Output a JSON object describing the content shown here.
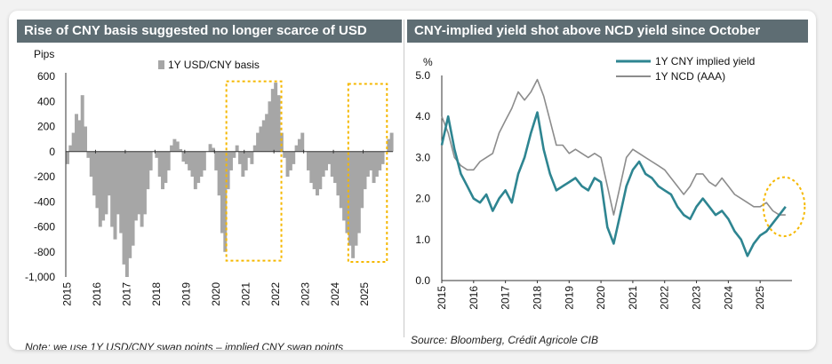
{
  "chart_data": [
    {
      "type": "bar",
      "title": "Rise of CNY basis suggested no longer scarce of USD",
      "ylabel": "Pips",
      "ylim": [
        -1000,
        600
      ],
      "yticks": [
        "600",
        "400",
        "200",
        "0",
        "-200",
        "-400",
        "-600",
        "-800",
        "-1,000"
      ],
      "xlim": [
        2015.0,
        2026.0
      ],
      "xticks": [
        "2015",
        "2016",
        "2017",
        "2018",
        "2019",
        "2020",
        "2021",
        "2022",
        "2023",
        "2024",
        "2025"
      ],
      "legend": "1Y USD/CNY basis",
      "series": [
        {
          "name": "1Y USD/CNY basis",
          "x": [
            2015.0,
            2015.1,
            2015.2,
            2015.3,
            2015.4,
            2015.5,
            2015.6,
            2015.7,
            2015.8,
            2015.9,
            2016.0,
            2016.1,
            2016.2,
            2016.3,
            2016.4,
            2016.5,
            2016.6,
            2016.7,
            2016.8,
            2016.9,
            2017.0,
            2017.1,
            2017.2,
            2017.3,
            2017.4,
            2017.5,
            2017.6,
            2017.7,
            2017.8,
            2017.9,
            2018.0,
            2018.1,
            2018.2,
            2018.3,
            2018.4,
            2018.5,
            2018.6,
            2018.7,
            2018.8,
            2018.9,
            2019.0,
            2019.1,
            2019.2,
            2019.3,
            2019.4,
            2019.5,
            2019.6,
            2019.7,
            2019.8,
            2019.9,
            2020.0,
            2020.1,
            2020.2,
            2020.3,
            2020.4,
            2020.5,
            2020.6,
            2020.7,
            2020.8,
            2020.9,
            2021.0,
            2021.1,
            2021.2,
            2021.3,
            2021.4,
            2021.5,
            2021.6,
            2021.7,
            2021.8,
            2021.9,
            2022.0,
            2022.1,
            2022.2,
            2022.3,
            2022.4,
            2022.5,
            2022.6,
            2022.7,
            2022.8,
            2022.9,
            2023.0,
            2023.1,
            2023.2,
            2023.3,
            2023.4,
            2023.5,
            2023.6,
            2023.7,
            2023.8,
            2023.9,
            2024.0,
            2024.1,
            2024.2,
            2024.3,
            2024.4,
            2024.5,
            2024.6,
            2024.7,
            2024.8,
            2024.9,
            2025.0,
            2025.1,
            2025.2,
            2025.3,
            2025.4,
            2025.5,
            2025.6,
            2025.7,
            2025.8,
            2025.9
          ],
          "values": [
            -100,
            50,
            150,
            300,
            250,
            450,
            200,
            -50,
            -200,
            -350,
            -450,
            -600,
            -550,
            -500,
            -350,
            -600,
            -700,
            -500,
            -650,
            -900,
            -1000,
            -850,
            -750,
            -550,
            -500,
            -600,
            -500,
            -300,
            -150,
            0,
            -50,
            -200,
            -300,
            -250,
            -150,
            50,
            100,
            80,
            20,
            -80,
            -100,
            -150,
            -200,
            -300,
            -250,
            -200,
            -150,
            0,
            60,
            30,
            -150,
            -350,
            -650,
            -800,
            -300,
            -150,
            -50,
            50,
            -100,
            -200,
            -150,
            -50,
            -100,
            50,
            150,
            200,
            250,
            300,
            400,
            500,
            550,
            450,
            150,
            -50,
            -200,
            -150,
            -100,
            50,
            100,
            150,
            0,
            -150,
            -250,
            -300,
            -350,
            -300,
            -200,
            -150,
            -100,
            -200,
            -250,
            -350,
            -450,
            -550,
            -650,
            -750,
            -850,
            -750,
            -650,
            -450,
            -300,
            -200,
            -150,
            -250,
            -200,
            -150,
            -100,
            0,
            100,
            150
          ]
        }
      ],
      "highlights": [
        {
          "x_from": 2020.4,
          "x_to": 2022.25,
          "y_from": -870,
          "y_to": 560
        },
        {
          "x_from": 2024.5,
          "x_to": 2025.8,
          "y_from": -880,
          "y_to": 540
        }
      ],
      "note": "Note: we use 1Y USD/CNY swap points – implied CNY swap points"
    },
    {
      "type": "line",
      "title": "CNY-implied yield shot above NCD yield since October",
      "ylabel": "%",
      "ylim": [
        0.0,
        5.0
      ],
      "yticks": [
        "5.0",
        "4.0",
        "3.0",
        "2.0",
        "1.0",
        "0.0"
      ],
      "xlim": [
        2015.0,
        2026.0
      ],
      "xticks": [
        "2015",
        "2016",
        "2017",
        "2018",
        "2019",
        "2020",
        "2021",
        "2022",
        "2023",
        "2024",
        "2025"
      ],
      "series": [
        {
          "name": "1Y CNY implied yield",
          "color": "#2e8591",
          "x": [
            2015.0,
            2015.2,
            2015.4,
            2015.6,
            2015.8,
            2016.0,
            2016.2,
            2016.4,
            2016.6,
            2016.8,
            2017.0,
            2017.2,
            2017.4,
            2017.6,
            2017.8,
            2018.0,
            2018.2,
            2018.4,
            2018.6,
            2018.8,
            2019.0,
            2019.2,
            2019.4,
            2019.6,
            2019.8,
            2020.0,
            2020.2,
            2020.4,
            2020.6,
            2020.8,
            2021.0,
            2021.2,
            2021.4,
            2021.6,
            2021.8,
            2022.0,
            2022.2,
            2022.4,
            2022.6,
            2022.8,
            2023.0,
            2023.2,
            2023.4,
            2023.6,
            2023.8,
            2024.0,
            2024.2,
            2024.4,
            2024.6,
            2024.8,
            2025.0,
            2025.2,
            2025.4,
            2025.6,
            2025.8
          ],
          "values": [
            3.3,
            4.0,
            3.2,
            2.6,
            2.3,
            2.0,
            1.9,
            2.1,
            1.7,
            2.0,
            2.2,
            1.9,
            2.6,
            3.0,
            3.6,
            4.1,
            3.2,
            2.6,
            2.2,
            2.3,
            2.4,
            2.5,
            2.3,
            2.2,
            2.5,
            2.4,
            1.3,
            0.9,
            1.6,
            2.3,
            2.7,
            2.9,
            2.6,
            2.5,
            2.3,
            2.2,
            2.1,
            1.8,
            1.6,
            1.5,
            1.8,
            2.0,
            1.8,
            1.6,
            1.7,
            1.5,
            1.2,
            1.0,
            0.6,
            0.9,
            1.1,
            1.2,
            1.4,
            1.6,
            1.8
          ]
        },
        {
          "name": "1Y NCD (AAA)",
          "color": "#8c8c8c",
          "x": [
            2015.0,
            2015.2,
            2015.4,
            2015.6,
            2015.8,
            2016.0,
            2016.2,
            2016.4,
            2016.6,
            2016.8,
            2017.0,
            2017.2,
            2017.4,
            2017.6,
            2017.8,
            2018.0,
            2018.2,
            2018.4,
            2018.6,
            2018.8,
            2019.0,
            2019.2,
            2019.4,
            2019.6,
            2019.8,
            2020.0,
            2020.2,
            2020.4,
            2020.6,
            2020.8,
            2021.0,
            2021.2,
            2021.4,
            2021.6,
            2021.8,
            2022.0,
            2022.2,
            2022.4,
            2022.6,
            2022.8,
            2023.0,
            2023.2,
            2023.4,
            2023.6,
            2023.8,
            2024.0,
            2024.2,
            2024.4,
            2024.6,
            2024.8,
            2025.0,
            2025.2,
            2025.4,
            2025.6,
            2025.8
          ],
          "values": [
            4.0,
            3.6,
            3.0,
            2.8,
            2.7,
            2.7,
            2.9,
            3.0,
            3.1,
            3.6,
            3.9,
            4.2,
            4.6,
            4.4,
            4.6,
            4.9,
            4.5,
            3.9,
            3.3,
            3.3,
            3.1,
            3.2,
            3.1,
            3.0,
            3.1,
            3.0,
            2.3,
            1.6,
            2.3,
            3.0,
            3.2,
            3.1,
            3.0,
            2.9,
            2.8,
            2.7,
            2.5,
            2.3,
            2.1,
            2.3,
            2.6,
            2.6,
            2.4,
            2.3,
            2.5,
            2.3,
            2.1,
            2.0,
            1.9,
            1.8,
            1.8,
            1.9,
            1.7,
            1.6,
            1.6
          ]
        }
      ],
      "highlight": {
        "x_center": 2025.75,
        "y_center": 1.8,
        "x_radius": 0.65,
        "y_radius": 0.72
      },
      "source": "Source: Bloomberg, Crédit Agricole CIB"
    }
  ]
}
